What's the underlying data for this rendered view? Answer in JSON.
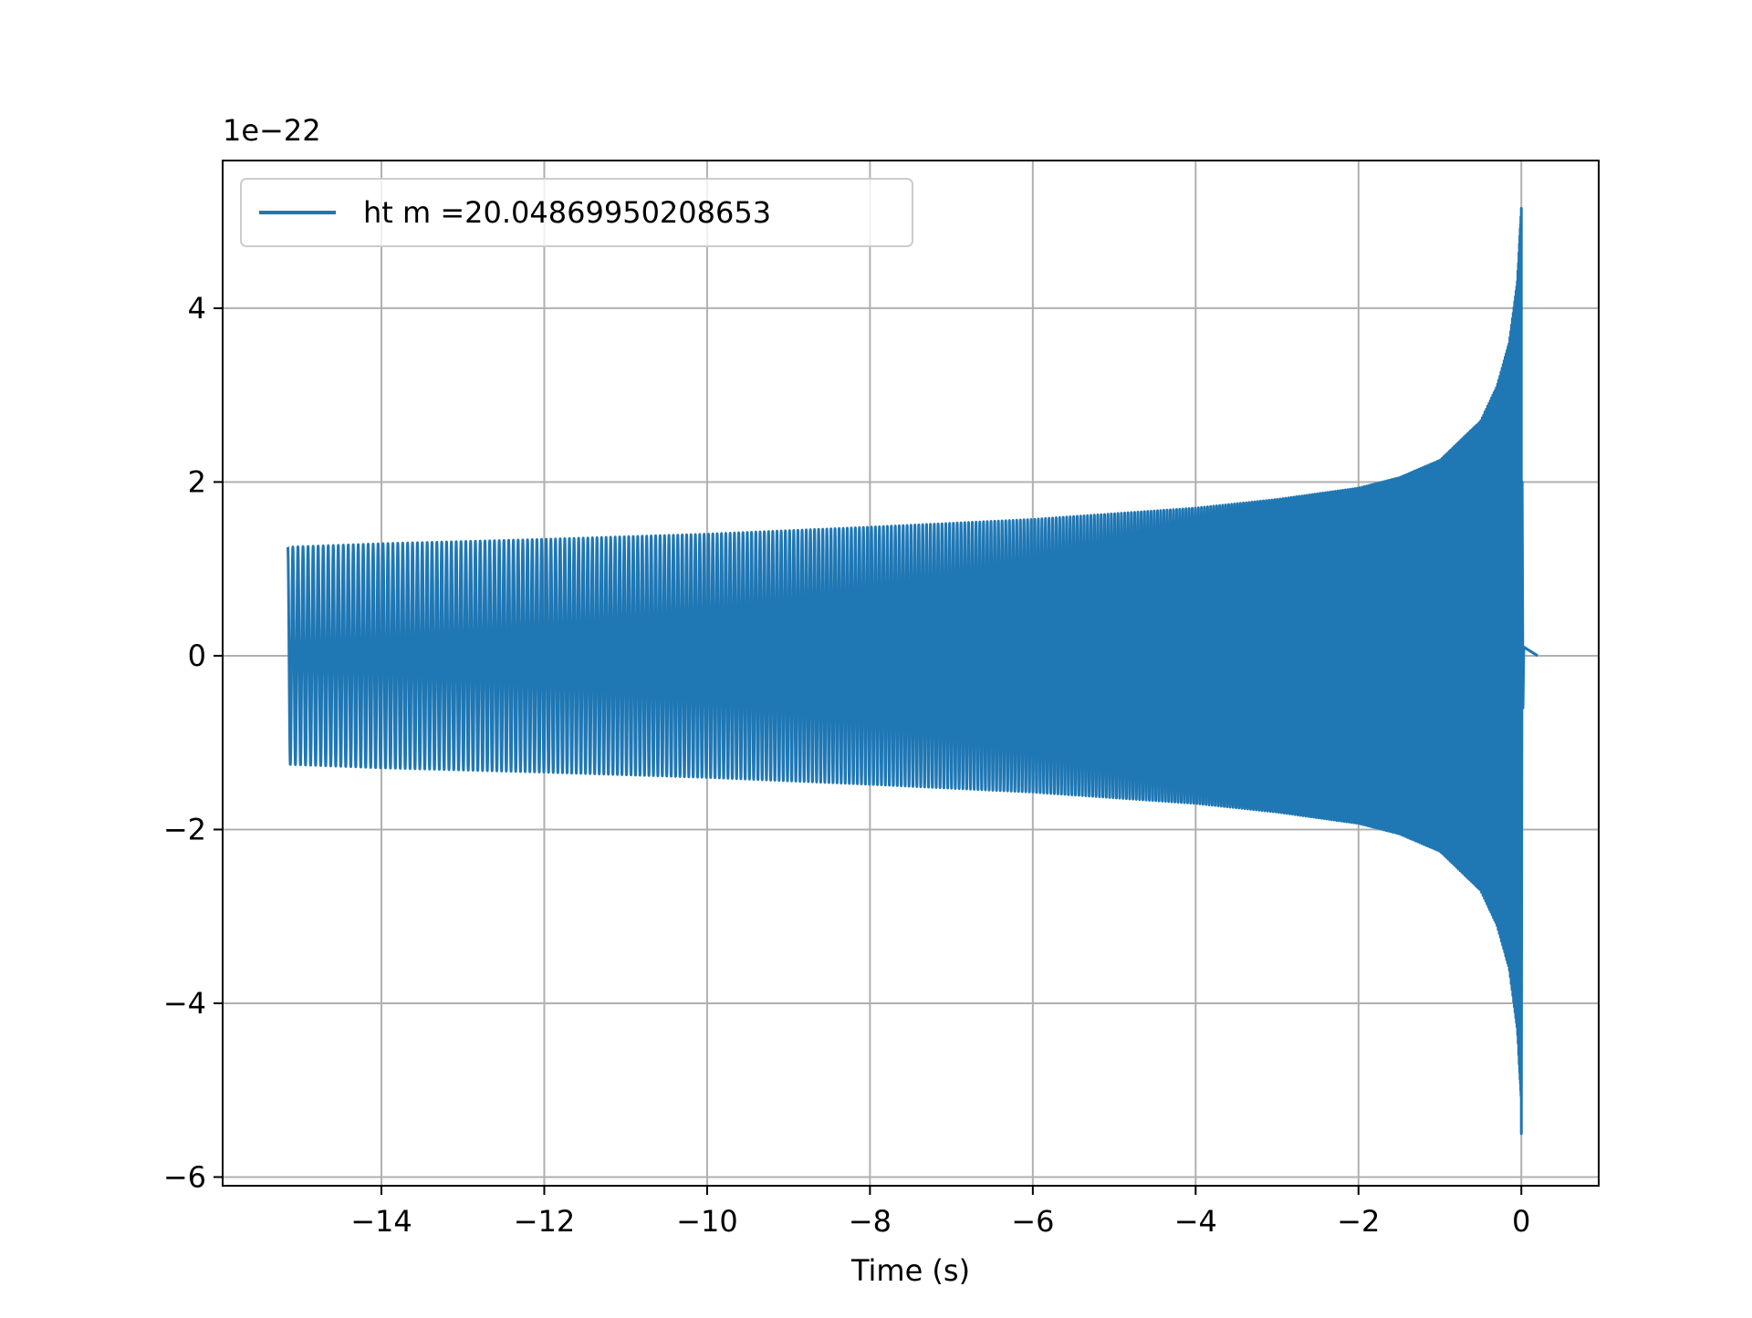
{
  "chart_data": {
    "type": "line",
    "xlabel": "Time (s)",
    "ylabel": "",
    "y_scale_label": "1e−22",
    "y_scale_factor": 1e-22,
    "xlim": [
      -15.95,
      0.95
    ],
    "ylim": [
      -6.1,
      5.7
    ],
    "x_ticks": [
      -14,
      -12,
      -10,
      -8,
      -6,
      -4,
      -2,
      0
    ],
    "x_tick_labels": [
      "−14",
      "−12",
      "−10",
      "−8",
      "−6",
      "−4",
      "−2",
      "0"
    ],
    "y_ticks": [
      -6,
      -4,
      -2,
      0,
      2,
      4
    ],
    "y_tick_labels": [
      "−6",
      "−4",
      "−2",
      "0",
      "2",
      "4"
    ],
    "grid": true,
    "legend_position": "upper-left",
    "series": [
      {
        "name": "ht m =20.04869950208653",
        "color": "#1f77b4",
        "t_start": -15.15,
        "t_merger": 0.0,
        "t_end": 0.2,
        "envelope_points": [
          [
            -15.15,
            1.25
          ],
          [
            -14,
            1.29
          ],
          [
            -12,
            1.34
          ],
          [
            -10,
            1.4
          ],
          [
            -8,
            1.48
          ],
          [
            -6,
            1.57
          ],
          [
            -4,
            1.7
          ],
          [
            -3,
            1.8
          ],
          [
            -2,
            1.93
          ],
          [
            -1.5,
            2.05
          ],
          [
            -1,
            2.25
          ],
          [
            -0.5,
            2.7
          ],
          [
            -0.3,
            3.1
          ],
          [
            -0.15,
            3.6
          ],
          [
            -0.05,
            4.3
          ],
          [
            0,
            5.15
          ],
          [
            0.02,
            0.5
          ],
          [
            0.05,
            0.05
          ],
          [
            0.2,
            0.0
          ]
        ],
        "min_value": -5.5,
        "max_value": 5.15
      }
    ]
  }
}
